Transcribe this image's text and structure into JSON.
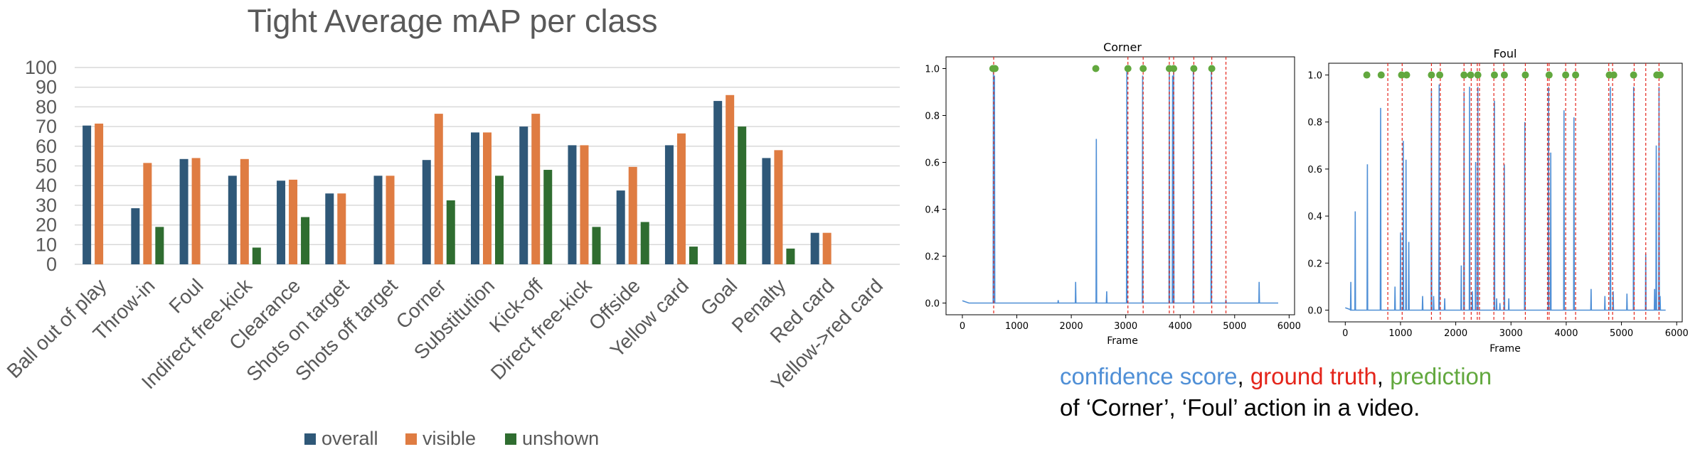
{
  "colors": {
    "overall": "#2f5878",
    "visible": "#df7c42",
    "unshown": "#2f6d30",
    "confidence": "#4f8fd6",
    "ground_truth": "#e4251b",
    "prediction": "#62a83e"
  },
  "caption": {
    "confidence": "confidence score",
    "sep1": ", ",
    "ground_truth": "ground truth",
    "sep2": ", ",
    "prediction": "prediction",
    "line2": "of ‘Corner’, ‘Foul’ action in a video."
  },
  "chart_data": [
    {
      "type": "bar",
      "title": "Tight Average mAP per class",
      "categories": [
        "Ball out of play",
        "Throw-in",
        "Foul",
        "Indirect free-kick",
        "Clearance",
        "Shots on target",
        "Shots off target",
        "Corner",
        "Substitution",
        "Kick-off",
        "Direct free-kick",
        "Offside",
        "Yellow card",
        "Goal",
        "Penalty",
        "Red card",
        "Yellow->red card"
      ],
      "series": [
        {
          "name": "overall",
          "values": [
            70.5,
            28.5,
            53.5,
            45,
            42.5,
            36,
            45,
            53,
            67,
            70,
            60.5,
            37.5,
            60.5,
            83,
            54,
            16,
            null
          ]
        },
        {
          "name": "visible",
          "values": [
            71.5,
            51.5,
            54,
            53.5,
            43,
            36,
            45,
            76.5,
            67,
            76.5,
            60.5,
            49.5,
            66.5,
            86,
            58,
            16,
            null
          ]
        },
        {
          "name": "unshown",
          "values": [
            null,
            19,
            null,
            8.5,
            24,
            null,
            null,
            32.5,
            45,
            48,
            19,
            21.5,
            9,
            70,
            8,
            null,
            null
          ]
        }
      ],
      "ylim": [
        0,
        100
      ],
      "yticks": [
        "0",
        "10",
        "20",
        "30",
        "40",
        "50",
        "60",
        "70",
        "80",
        "90",
        "100"
      ],
      "grid": true,
      "legend": "bottom"
    },
    {
      "type": "line",
      "title": "Corner",
      "xlabel": "Frame",
      "xlim": [
        -300,
        6100
      ],
      "ylim": [
        -0.05,
        1.05
      ],
      "xticks": [
        "0",
        "1000",
        "2000",
        "3000",
        "4000",
        "5000",
        "6000"
      ],
      "yticks": [
        "0.0",
        "0.2",
        "0.4",
        "0.6",
        "0.8",
        "1.0"
      ],
      "confidence_peaks": [
        [
          570,
          1.0
        ],
        [
          590,
          0.97
        ],
        [
          1760,
          0.012
        ],
        [
          2080,
          0.09
        ],
        [
          2460,
          0.7
        ],
        [
          2650,
          0.05
        ],
        [
          3020,
          1.0
        ],
        [
          3310,
          0.97
        ],
        [
          3800,
          1.0
        ],
        [
          3860,
          0.97
        ],
        [
          3880,
          1.0
        ],
        [
          4240,
          1.0
        ],
        [
          4570,
          1.0
        ],
        [
          4840,
          0.015
        ],
        [
          5450,
          0.09
        ]
      ],
      "ground_truth_frames": [
        575,
        3040,
        3320,
        3800,
        3880,
        4250,
        4580,
        4840
      ],
      "prediction_points": [
        [
          560,
          1.0
        ],
        [
          600,
          1.0
        ],
        [
          2450,
          1.0
        ],
        [
          3040,
          1.0
        ],
        [
          3320,
          1.0
        ],
        [
          3800,
          1.0
        ],
        [
          3880,
          1.0
        ],
        [
          4250,
          1.0
        ],
        [
          4580,
          1.0
        ]
      ]
    },
    {
      "type": "line",
      "title": "Foul",
      "xlabel": "Frame",
      "xlim": [
        -300,
        6100
      ],
      "ylim": [
        -0.05,
        1.05
      ],
      "xticks": [
        "0",
        "1000",
        "2000",
        "3000",
        "4000",
        "5000",
        "6000"
      ],
      "yticks": [
        "0.0",
        "0.2",
        "0.4",
        "0.6",
        "0.8",
        "1.0"
      ],
      "confidence_peaks": [
        [
          100,
          0.12
        ],
        [
          180,
          0.42
        ],
        [
          400,
          0.62
        ],
        [
          640,
          0.86
        ],
        [
          900,
          0.1
        ],
        [
          1000,
          0.33
        ],
        [
          1050,
          0.72
        ],
        [
          1100,
          0.64
        ],
        [
          1150,
          0.29
        ],
        [
          1400,
          0.06
        ],
        [
          1560,
          0.94
        ],
        [
          1600,
          0.06
        ],
        [
          1700,
          0.96
        ],
        [
          1800,
          0.05
        ],
        [
          2100,
          0.19
        ],
        [
          2150,
          0.93
        ],
        [
          2250,
          0.95
        ],
        [
          2300,
          0.08
        ],
        [
          2360,
          0.63
        ],
        [
          2400,
          0.95
        ],
        [
          2700,
          0.89
        ],
        [
          2740,
          0.05
        ],
        [
          2800,
          0.03
        ],
        [
          2880,
          0.62
        ],
        [
          2960,
          0.05
        ],
        [
          3250,
          0.8
        ],
        [
          3680,
          0.95
        ],
        [
          3720,
          0.67
        ],
        [
          3960,
          0.85
        ],
        [
          4140,
          0.82
        ],
        [
          4450,
          0.09
        ],
        [
          4700,
          0.06
        ],
        [
          4800,
          0.95
        ],
        [
          4850,
          0.08
        ],
        [
          5100,
          0.07
        ],
        [
          5220,
          0.95
        ],
        [
          5440,
          0.24
        ],
        [
          5600,
          0.09
        ],
        [
          5630,
          0.7
        ],
        [
          5680,
          0.95
        ],
        [
          5700,
          0.06
        ]
      ],
      "ground_truth_frames": [
        770,
        1030,
        1560,
        1720,
        2150,
        2280,
        2390,
        2430,
        2690,
        2870,
        3260,
        3660,
        3690,
        3990,
        4170,
        4770,
        4840,
        5230,
        5440,
        5680
      ],
      "prediction_points": [
        [
          390,
          1.0
        ],
        [
          650,
          1.0
        ],
        [
          1020,
          1.0
        ],
        [
          1110,
          1.0
        ],
        [
          1560,
          1.0
        ],
        [
          1710,
          1.0
        ],
        [
          2150,
          1.0
        ],
        [
          2270,
          1.0
        ],
        [
          2400,
          1.0
        ],
        [
          2700,
          1.0
        ],
        [
          2880,
          1.0
        ],
        [
          3260,
          1.0
        ],
        [
          3690,
          1.0
        ],
        [
          3990,
          1.0
        ],
        [
          4170,
          1.0
        ],
        [
          4780,
          1.0
        ],
        [
          4860,
          1.0
        ],
        [
          5220,
          1.0
        ],
        [
          5640,
          1.0
        ],
        [
          5700,
          1.0
        ]
      ]
    }
  ]
}
